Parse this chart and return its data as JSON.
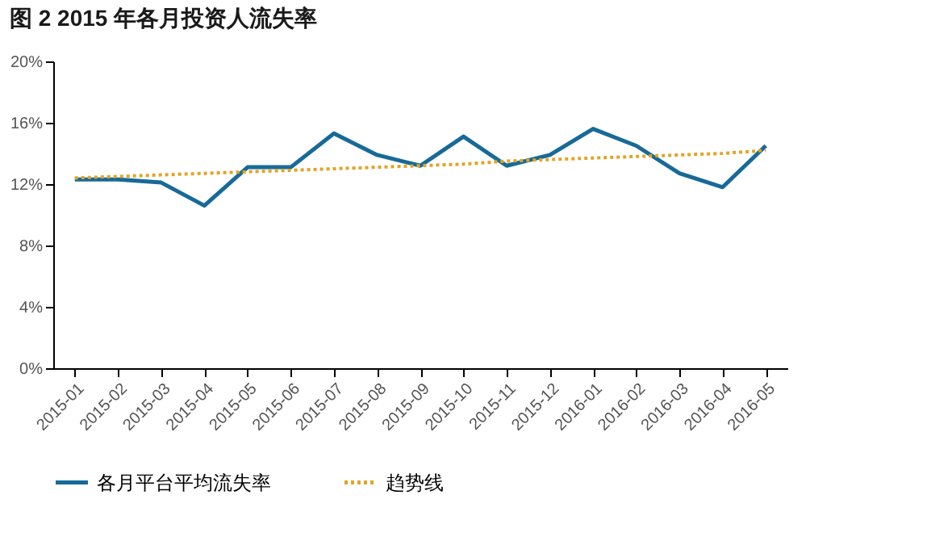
{
  "chart_data": {
    "type": "line",
    "title": "图 2    2015 年各月投资人流失率",
    "categories": [
      "2015-01",
      "2015-02",
      "2015-03",
      "2015-04",
      "2015-05",
      "2015-06",
      "2015-07",
      "2015-08",
      "2015-09",
      "2015-10",
      "2015-11",
      "2015-12",
      "2016-01",
      "2016-02",
      "2016-03",
      "2016-04",
      "2016-05"
    ],
    "series": [
      {
        "name": "各月平台平均流失率",
        "color": "#176a98",
        "line_style": "solid",
        "values": [
          12.3,
          12.3,
          12.1,
          10.6,
          13.1,
          13.1,
          15.3,
          13.9,
          13.2,
          15.1,
          13.2,
          13.9,
          15.6,
          14.5,
          12.7,
          11.8,
          14.5
        ]
      },
      {
        "name": "趋势线",
        "type": "line",
        "color": "#e0a526",
        "line_style": "dotted",
        "values": [
          12.4,
          12.5,
          12.6,
          12.7,
          12.8,
          12.9,
          13.0,
          13.1,
          13.2,
          13.3,
          13.5,
          13.6,
          13.7,
          13.8,
          13.9,
          14.0,
          14.2
        ]
      }
    ],
    "ylim": [
      0,
      20
    ],
    "yticks": [
      {
        "value": 0,
        "label": "0%"
      },
      {
        "value": 4,
        "label": "4%"
      },
      {
        "value": 8,
        "label": "8%"
      },
      {
        "value": 12,
        "label": "12%"
      },
      {
        "value": 16,
        "label": "16%"
      },
      {
        "value": 20,
        "label": "20%"
      }
    ],
    "legend": "bottom"
  }
}
